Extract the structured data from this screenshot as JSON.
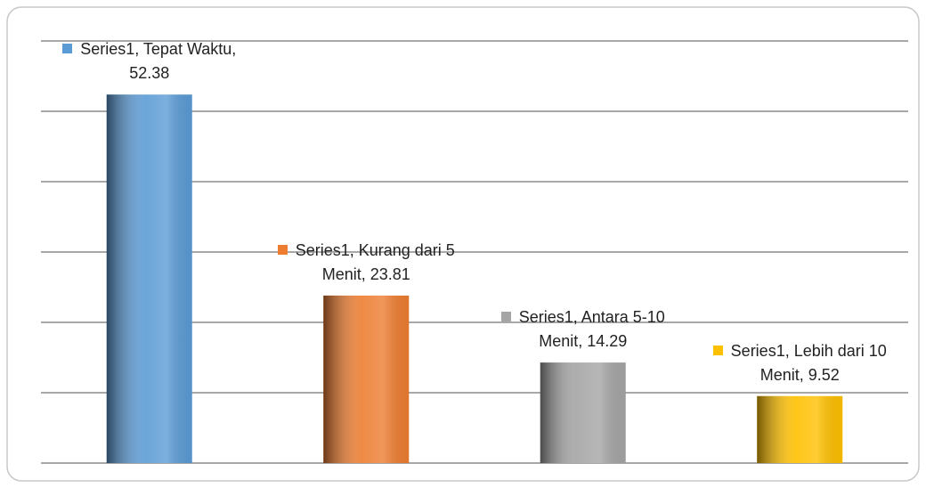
{
  "chart_data": {
    "type": "bar",
    "categories": [
      "Tepat Waktu",
      "Kurang dari 5 Menit",
      "Antara 5-10 Menit",
      "Lebih dari 10 Menit"
    ],
    "series": [
      {
        "name": "Series1",
        "values": [
          52.38,
          23.81,
          14.29,
          9.52
        ],
        "colors": [
          "#5b9bd5",
          "#ed7d31",
          "#a5a5a5",
          "#ffc000"
        ]
      }
    ],
    "ylim": [
      0,
      60
    ],
    "yticks": [
      0,
      10,
      20,
      30,
      40,
      50,
      60
    ],
    "grid": true
  }
}
